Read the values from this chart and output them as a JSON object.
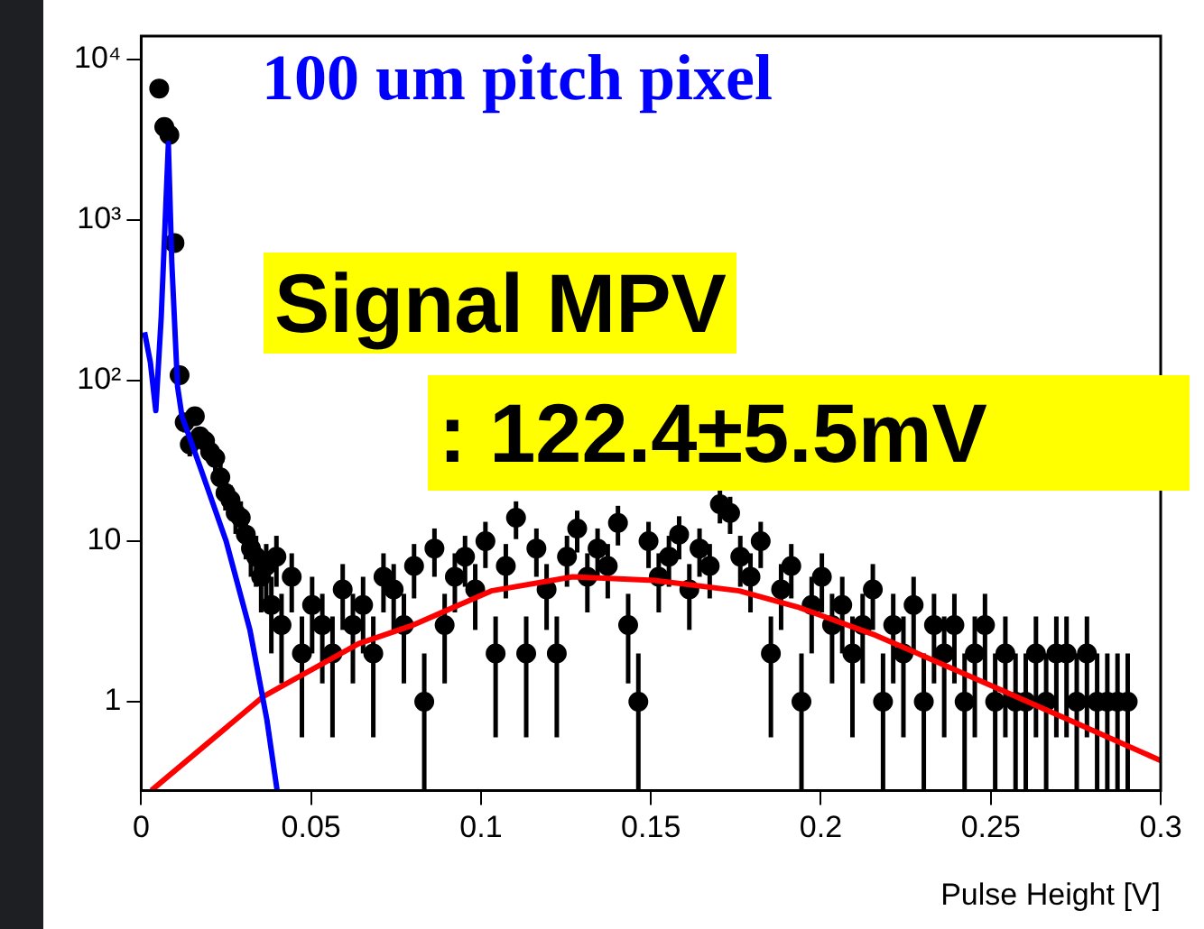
{
  "chart_data": {
    "type": "scatter",
    "xlabel": "Pulse Height [V]",
    "annotations": [
      "100 um pitch pixel",
      "Signal MPV",
      ": 122.4±5.5mV"
    ],
    "xlim": [
      0,
      0.3
    ],
    "xticks": [
      0,
      0.05,
      0.1,
      0.15,
      0.2,
      0.25,
      0.3
    ],
    "ylim": [
      0.28,
      14000
    ],
    "yticks": [
      1,
      10,
      {
        "value": 100,
        "label": "10²"
      },
      {
        "value": 1000,
        "label": "10³"
      },
      {
        "value": 10000,
        "label": "10⁴"
      }
    ],
    "log": "y",
    "marker": "circle",
    "series": [
      {
        "color": "#000000",
        "x": [
          0.0053,
          0.0068,
          0.0083,
          0.0098,
          0.0113,
          0.0128,
          0.0143,
          0.0158,
          0.0173,
          0.0188,
          0.0203,
          0.0218,
          0.0233,
          0.0248,
          0.0263,
          0.0278,
          0.0293,
          0.0308,
          0.0323,
          0.0338,
          0.0353,
          0.0368,
          0.0383,
          0.0398,
          0.0413,
          0.0443,
          0.0473,
          0.0503,
          0.0533,
          0.0563,
          0.0593,
          0.0623,
          0.0653,
          0.0683,
          0.0713,
          0.0743,
          0.0773,
          0.0803,
          0.0833,
          0.0863,
          0.0893,
          0.0923,
          0.0953,
          0.0983,
          0.1013,
          0.1043,
          0.1073,
          0.1103,
          0.1133,
          0.1163,
          0.1193,
          0.1223,
          0.1253,
          0.1283,
          0.1313,
          0.1343,
          0.1373,
          0.1403,
          0.1433,
          0.1463,
          0.1493,
          0.1523,
          0.1553,
          0.1583,
          0.1613,
          0.1643,
          0.1673,
          0.1703,
          0.1733,
          0.1763,
          0.1793,
          0.1823,
          0.1853,
          0.1883,
          0.1913,
          0.1943,
          0.1973,
          0.2003,
          0.2033,
          0.2063,
          0.2093,
          0.2123,
          0.2153,
          0.2183,
          0.2213,
          0.2243,
          0.2273,
          0.2303,
          0.2333,
          0.2363,
          0.2393,
          0.2423,
          0.2453,
          0.2483,
          0.2513,
          0.2543,
          0.2573,
          0.2603,
          0.2633,
          0.2663,
          0.2693,
          0.2723,
          0.2753,
          0.2783,
          0.2813,
          0.2843,
          0.2873,
          0.2903
        ],
        "values": [
          6600,
          3800,
          3400,
          720,
          108,
          55,
          40,
          60,
          45,
          42,
          36,
          33,
          25,
          20,
          18,
          15,
          14,
          11,
          9,
          8,
          6,
          7,
          4,
          8,
          3,
          6,
          2,
          4,
          3,
          2,
          5,
          3,
          4,
          2,
          6,
          5,
          3,
          7,
          1,
          9,
          3,
          6,
          8,
          5,
          10,
          2,
          7,
          14,
          2,
          9,
          5,
          2,
          8,
          12,
          6,
          9,
          7,
          13,
          3,
          1,
          10,
          6,
          8,
          11,
          5,
          9,
          7,
          17,
          15,
          8,
          6,
          10,
          2,
          5,
          7,
          1,
          4,
          6,
          3,
          4,
          2,
          3,
          5,
          1,
          3,
          2,
          4,
          1,
          3,
          2,
          3,
          1,
          2,
          3,
          1,
          2,
          1,
          1,
          2,
          1,
          2,
          2,
          1,
          2,
          1,
          1,
          1,
          1
        ],
        "errors": [
          81,
          62,
          58,
          27,
          10,
          7.4,
          6.3,
          7.7,
          6.7,
          6.5,
          6,
          5.7,
          5,
          4.5,
          4.2,
          3.9,
          3.7,
          3.3,
          3,
          2.8,
          2.4,
          2.6,
          2,
          2.8,
          1.7,
          2.4,
          1.4,
          2,
          1.7,
          1.4,
          2.2,
          1.7,
          2,
          1.4,
          2.4,
          2.2,
          1.7,
          2.6,
          [
            0.28,
            2
          ],
          3,
          1.7,
          2.4,
          2.8,
          2.2,
          3.2,
          1.4,
          2.6,
          3.7,
          1.4,
          3,
          2.2,
          1.4,
          2.8,
          3.5,
          2.4,
          3,
          2.6,
          3.6,
          1.7,
          [
            0.28,
            2
          ],
          3.2,
          2.4,
          2.8,
          3.3,
          2.2,
          3,
          2.6,
          4.1,
          3.9,
          2.8,
          2.4,
          3.2,
          1.4,
          2.2,
          2.6,
          [
            0.28,
            2
          ],
          2,
          2.4,
          1.7,
          2,
          1.4,
          1.7,
          2.2,
          [
            0.28,
            2
          ],
          1.7,
          1.4,
          2,
          [
            0.28,
            2
          ],
          1.7,
          1.4,
          1.7,
          [
            0.28,
            2
          ],
          1.4,
          1.7,
          [
            0.28,
            2
          ],
          1.4,
          [
            0.28,
            2
          ],
          [
            0.28,
            2
          ],
          1.4,
          [
            0.28,
            2
          ],
          1.4,
          1.4,
          [
            0.28,
            2
          ],
          1.4,
          [
            0.28,
            2
          ],
          [
            0.28,
            2
          ],
          [
            0.28,
            2
          ],
          [
            0.28,
            2
          ]
        ]
      },
      {
        "type": "line",
        "marker": "none",
        "color": "#0000ff",
        "x": [
          0.001,
          0.0027,
          0.0043,
          0.0059,
          0.008,
          0.009,
          0.0107,
          0.012,
          0.0176,
          0.025,
          0.032,
          0.037,
          0.04
        ],
        "values": [
          200,
          130,
          65,
          250,
          3000,
          550,
          92,
          60,
          28,
          10,
          2.8,
          0.77,
          0.28
        ]
      },
      {
        "type": "line",
        "marker": "none",
        "color": "#ff0000",
        "x": [
          0.003,
          0.036,
          0.064,
          0.08,
          0.103,
          0.127,
          0.151,
          0.176,
          0.193,
          0.216,
          0.242,
          0.269,
          0.3
        ],
        "values": [
          0.28,
          1.08,
          2.3,
          3,
          4.9,
          6,
          5.7,
          4.9,
          3.9,
          2.6,
          1.5,
          0.84,
          0.43
        ]
      }
    ]
  }
}
